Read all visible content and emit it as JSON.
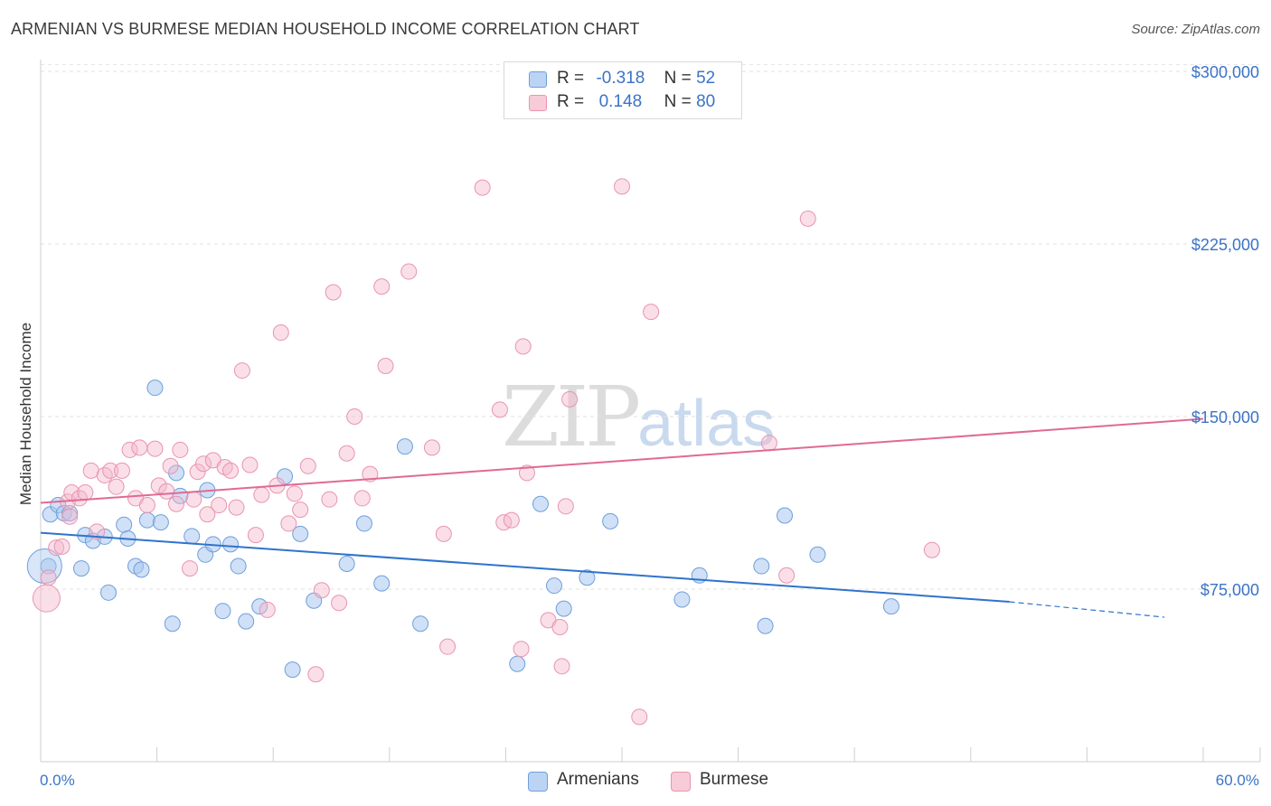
{
  "title": "ARMENIAN VS BURMESE MEDIAN HOUSEHOLD INCOME CORRELATION CHART",
  "source": "Source: ZipAtlas.com",
  "watermark": {
    "zip": "ZIP",
    "atlas": "atlas"
  },
  "legend": {
    "rows": [
      {
        "r_label": "R =",
        "r_value": "-0.318",
        "n_label": "N =",
        "n_value": "52"
      },
      {
        "r_label": "R =",
        "r_value": "0.148",
        "n_label": "N =",
        "n_value": "80"
      }
    ]
  },
  "bottom_legend": [
    "Armenians",
    "Burmese"
  ],
  "colors": {
    "armenian_fill": "#a9c7ef",
    "armenian_stroke": "#6f9fdc",
    "armenian_line": "#2f73cc",
    "burmese_fill": "#f5b9cc",
    "burmese_stroke": "#e994b0",
    "burmese_line": "#e06a92",
    "axis_text": "#3b73c7",
    "grid": "#e2e2e2"
  },
  "chart_data": {
    "type": "scatter",
    "title": "ARMENIAN VS BURMESE MEDIAN HOUSEHOLD INCOME CORRELATION CHART",
    "xlabel": "",
    "ylabel": "Median Household Income",
    "xlim": [
      0,
      60
    ],
    "ylim": [
      0,
      310000
    ],
    "x_tick_labels": [
      "0.0%",
      "60.0%"
    ],
    "y_ticks": [
      75000,
      150000,
      225000,
      300000
    ],
    "y_tick_labels": [
      "$75,000",
      "$150,000",
      "$225,000",
      "$300,000"
    ],
    "grid": "horizontal dashed",
    "legend_position": "top-center",
    "series": [
      {
        "name": "Armenians",
        "trend": {
          "x": [
            0,
            50
          ],
          "y": [
            99500,
            69500
          ],
          "dashed_extension_to_x": 58,
          "dashed_extension_y": 62800
        },
        "points": [
          [
            0.4,
            85000
          ],
          [
            0.5,
            107500
          ],
          [
            0.9,
            111500
          ],
          [
            1.2,
            108000
          ],
          [
            1.5,
            108000
          ],
          [
            2.1,
            84000
          ],
          [
            2.3,
            98500
          ],
          [
            2.7,
            96000
          ],
          [
            3.3,
            97800
          ],
          [
            3.5,
            73500
          ],
          [
            4.3,
            103000
          ],
          [
            4.5,
            97000
          ],
          [
            4.9,
            85000
          ],
          [
            5.2,
            83500
          ],
          [
            5.5,
            105000
          ],
          [
            5.9,
            162500
          ],
          [
            6.2,
            104000
          ],
          [
            6.8,
            60000
          ],
          [
            7.0,
            125500
          ],
          [
            7.2,
            115500
          ],
          [
            7.8,
            98000
          ],
          [
            8.5,
            90000
          ],
          [
            8.6,
            118000
          ],
          [
            8.9,
            94500
          ],
          [
            9.4,
            65500
          ],
          [
            9.8,
            94500
          ],
          [
            10.2,
            85000
          ],
          [
            10.6,
            61000
          ],
          [
            11.3,
            67500
          ],
          [
            12.6,
            124000
          ],
          [
            13.0,
            40000
          ],
          [
            13.4,
            99000
          ],
          [
            14.1,
            70000
          ],
          [
            15.8,
            86000
          ],
          [
            16.7,
            103500
          ],
          [
            17.6,
            77500
          ],
          [
            18.8,
            137000
          ],
          [
            19.6,
            60000
          ],
          [
            24.6,
            42500
          ],
          [
            25.8,
            112000
          ],
          [
            26.5,
            76500
          ],
          [
            27.0,
            66500
          ],
          [
            28.2,
            80000
          ],
          [
            29.4,
            104500
          ],
          [
            33.1,
            70500
          ],
          [
            34.0,
            81000
          ],
          [
            37.2,
            85000
          ],
          [
            37.4,
            59000
          ],
          [
            38.4,
            107000
          ],
          [
            40.1,
            90000
          ],
          [
            43.9,
            67500
          ],
          [
            0.2,
            85000
          ]
        ]
      },
      {
        "name": "Burmese",
        "trend": {
          "x": [
            0,
            60
          ],
          "y": [
            112500,
            149000
          ]
        },
        "points": [
          [
            0.3,
            71000
          ],
          [
            0.4,
            80000
          ],
          [
            0.8,
            93000
          ],
          [
            1.1,
            93500
          ],
          [
            1.4,
            113000
          ],
          [
            1.5,
            106500
          ],
          [
            1.6,
            117000
          ],
          [
            2.0,
            114500
          ],
          [
            2.3,
            117000
          ],
          [
            2.6,
            126500
          ],
          [
            2.9,
            100000
          ],
          [
            3.3,
            124500
          ],
          [
            3.6,
            126500
          ],
          [
            3.9,
            119500
          ],
          [
            4.2,
            126500
          ],
          [
            4.6,
            135500
          ],
          [
            4.9,
            114500
          ],
          [
            5.1,
            136500
          ],
          [
            5.5,
            111500
          ],
          [
            5.9,
            136000
          ],
          [
            6.1,
            120000
          ],
          [
            6.5,
            117500
          ],
          [
            6.7,
            128500
          ],
          [
            7.0,
            112000
          ],
          [
            7.2,
            135500
          ],
          [
            7.7,
            84000
          ],
          [
            7.9,
            114000
          ],
          [
            8.1,
            126000
          ],
          [
            8.4,
            129500
          ],
          [
            8.6,
            107500
          ],
          [
            8.9,
            131000
          ],
          [
            9.2,
            111500
          ],
          [
            9.5,
            128000
          ],
          [
            9.8,
            126500
          ],
          [
            10.1,
            110500
          ],
          [
            10.4,
            170000
          ],
          [
            10.8,
            129000
          ],
          [
            11.1,
            98500
          ],
          [
            11.4,
            116000
          ],
          [
            11.7,
            66000
          ],
          [
            12.2,
            120000
          ],
          [
            12.4,
            186500
          ],
          [
            12.8,
            103500
          ],
          [
            13.1,
            116500
          ],
          [
            13.4,
            109500
          ],
          [
            13.8,
            128500
          ],
          [
            14.2,
            38000
          ],
          [
            14.5,
            74500
          ],
          [
            14.9,
            114000
          ],
          [
            15.1,
            204000
          ],
          [
            15.4,
            69000
          ],
          [
            15.8,
            134000
          ],
          [
            16.2,
            150000
          ],
          [
            16.6,
            114500
          ],
          [
            17.0,
            125000
          ],
          [
            17.6,
            206500
          ],
          [
            17.8,
            172000
          ],
          [
            19.0,
            213000
          ],
          [
            20.2,
            136500
          ],
          [
            21.0,
            50000
          ],
          [
            20.8,
            99000
          ],
          [
            22.8,
            249500
          ],
          [
            23.7,
            153000
          ],
          [
            23.9,
            104000
          ],
          [
            24.3,
            105000
          ],
          [
            24.9,
            180500
          ],
          [
            25.1,
            125500
          ],
          [
            24.8,
            49000
          ],
          [
            26.2,
            61500
          ],
          [
            26.9,
            41500
          ],
          [
            26.8,
            58500
          ],
          [
            27.1,
            111000
          ],
          [
            27.3,
            157500
          ],
          [
            30.0,
            250000
          ],
          [
            30.9,
            19500
          ],
          [
            31.5,
            195500
          ],
          [
            37.6,
            138500
          ],
          [
            38.5,
            81000
          ],
          [
            39.6,
            236000
          ],
          [
            46.0,
            92000
          ]
        ]
      }
    ]
  }
}
